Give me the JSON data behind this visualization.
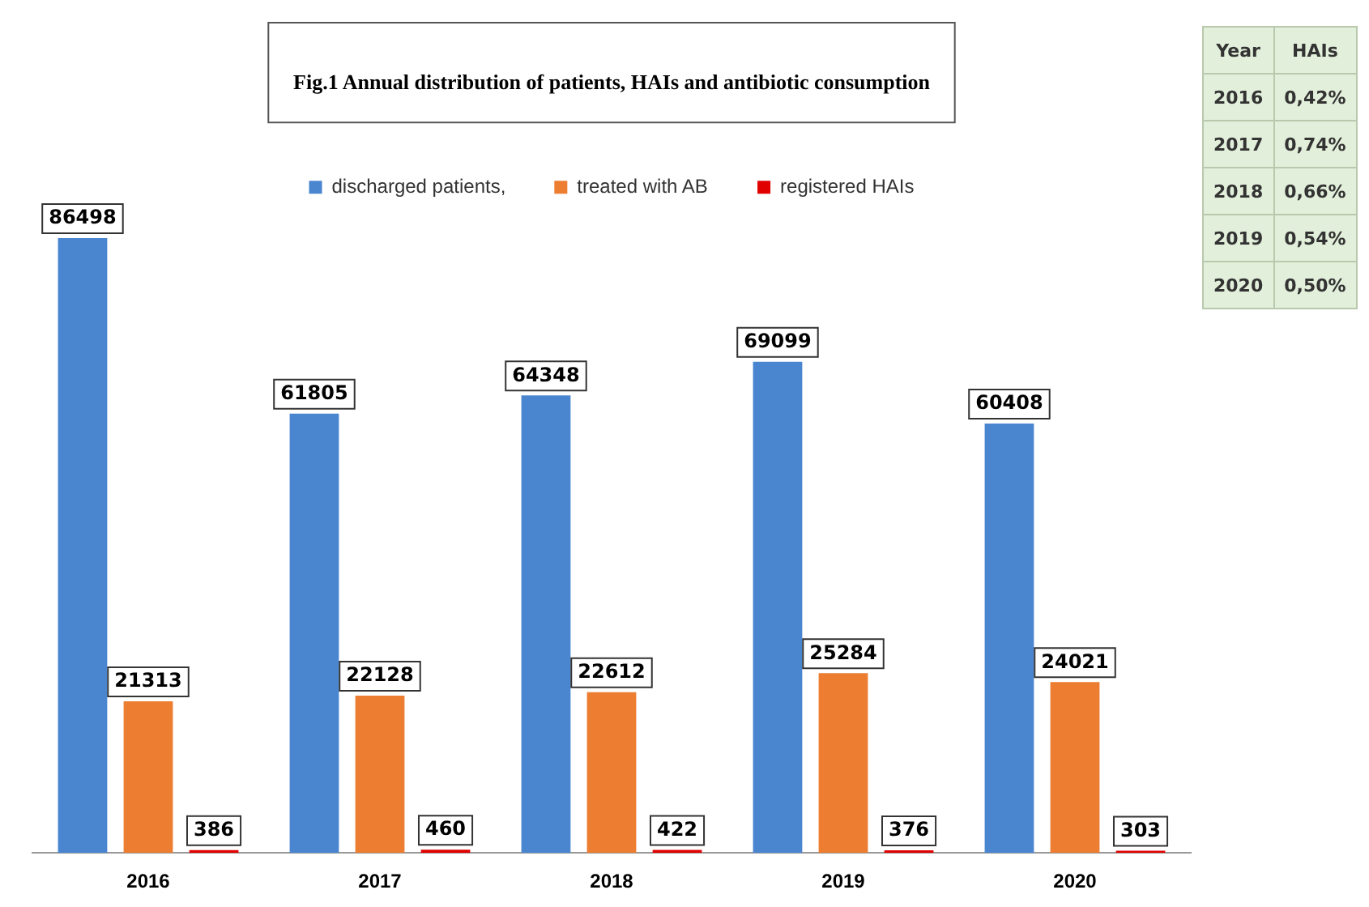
{
  "chart_data": {
    "type": "bar",
    "title": "Fig.1 Annual distribution of patients, HAIs and antibiotic consumption",
    "categories": [
      "2016",
      "2017",
      "2018",
      "2019",
      "2020"
    ],
    "series": [
      {
        "name": "discharged patients,",
        "color": "#4a86d0",
        "values": [
          86498,
          61805,
          64348,
          69099,
          60408
        ]
      },
      {
        "name": "treated with AB",
        "color": "#ed7d31",
        "values": [
          21313,
          22128,
          22612,
          25284,
          24021
        ]
      },
      {
        "name": "registered HAIs",
        "color": "#e00000",
        "values": [
          386,
          460,
          422,
          376,
          303
        ]
      }
    ],
    "data_labels": true,
    "legend": "top",
    "grid": false,
    "annotations": [
      "Year",
      "HAIs",
      "2016",
      "0,42%",
      "2017",
      "0,74%",
      "2018",
      "0,66%",
      "2019",
      "0,54%",
      "2020",
      "0,50%"
    ]
  }
}
